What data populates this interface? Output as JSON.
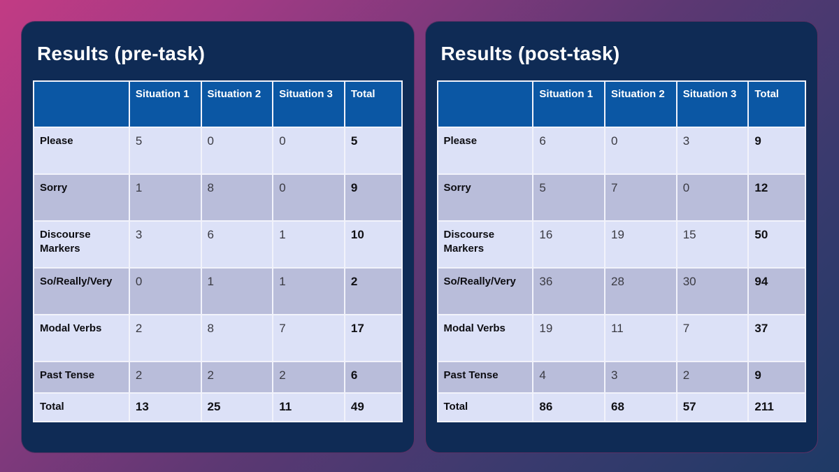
{
  "colors": {
    "panel_bg": "#0f2b55",
    "panel_border": "#9c3672",
    "header_bg": "#0b57a4",
    "row_light": "#dce1f7",
    "row_dark": "#b9bdda",
    "cell_border": "#f2f3fb",
    "title_text": "#ffffff",
    "header_text": "#ffffff",
    "label_text": "#0d0d12",
    "value_text": "#3a3a42",
    "bold_value_text": "#101014",
    "background_gradient": [
      "#c23b84",
      "#5d3873",
      "#1e3a66"
    ]
  },
  "panels": [
    {
      "title": "Results (pre-task)",
      "columns": [
        "",
        "Situation 1",
        "Situation 2",
        "Situation 3",
        "Total"
      ],
      "rows": [
        {
          "label": "Please",
          "values": [
            "5",
            "0",
            "0"
          ],
          "total": "5"
        },
        {
          "label": "Sorry",
          "values": [
            "1",
            "8",
            "0"
          ],
          "total": "9"
        },
        {
          "label": "Discourse Markers",
          "values": [
            "3",
            "6",
            "1"
          ],
          "total": "10"
        },
        {
          "label": "So/Really/Very",
          "values": [
            "0",
            "1",
            "1"
          ],
          "total": "2"
        },
        {
          "label": "Modal Verbs",
          "values": [
            "2",
            "8",
            "7"
          ],
          "total": "17"
        },
        {
          "label": "Past Tense",
          "values": [
            "2",
            "2",
            "2"
          ],
          "total": "6",
          "compact": true
        },
        {
          "label": "Total",
          "values": [
            "13",
            "25",
            "11"
          ],
          "total": "49",
          "is_total": true
        }
      ]
    },
    {
      "title": "Results (post-task)",
      "columns": [
        "",
        "Situation 1",
        "Situation 2",
        "Situation 3",
        "Total"
      ],
      "rows": [
        {
          "label": "Please",
          "values": [
            "6",
            "0",
            "3"
          ],
          "total": "9"
        },
        {
          "label": "Sorry",
          "values": [
            "5",
            "7",
            "0"
          ],
          "total": "12"
        },
        {
          "label": "Discourse Markers",
          "values": [
            "16",
            "19",
            "15"
          ],
          "total": "50"
        },
        {
          "label": "So/Really/Very",
          "values": [
            "36",
            "28",
            "30"
          ],
          "total": "94"
        },
        {
          "label": "Modal Verbs",
          "values": [
            "19",
            "11",
            "7"
          ],
          "total": "37"
        },
        {
          "label": "Past Tense",
          "values": [
            "4",
            "3",
            "2"
          ],
          "total": "9",
          "compact": true
        },
        {
          "label": "Total",
          "values": [
            "86",
            "68",
            "57"
          ],
          "total": "211",
          "is_total": true
        }
      ]
    }
  ]
}
